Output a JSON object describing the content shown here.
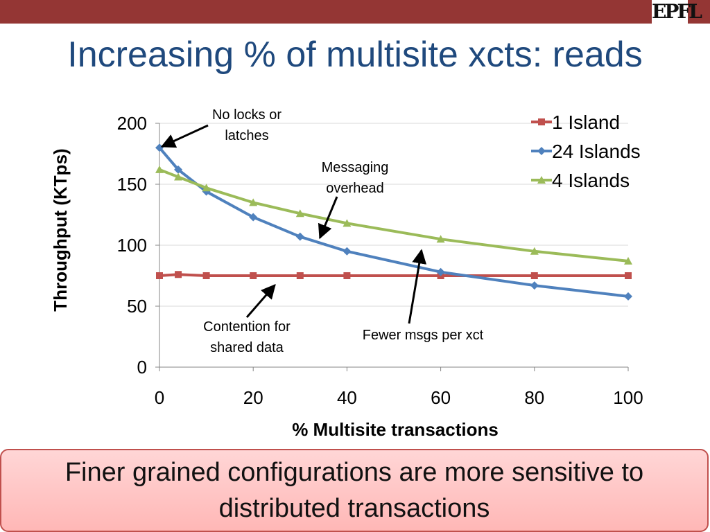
{
  "slide": {
    "title": "Increasing % of multisite xcts: reads",
    "logo_text": "EPFL",
    "callout": "Finer grained configurations are more sensitive to distributed transactions"
  },
  "colors": {
    "bar": "#943634",
    "title": "#1f497d",
    "grid": "#d9d9d9"
  },
  "chart_data": {
    "type": "line",
    "xlabel": "% Multisite transactions",
    "ylabel": "Throughput (KTps)",
    "xlim": [
      0,
      100
    ],
    "ylim": [
      0,
      200
    ],
    "xticks": [
      0,
      20,
      40,
      60,
      80,
      100
    ],
    "yticks": [
      0,
      50,
      100,
      150,
      200
    ],
    "grid": "horizontal",
    "legend_position": "top-right",
    "series": [
      {
        "name": "1 Island",
        "color": "#c0504d",
        "marker": "square",
        "x": [
          0,
          4,
          10,
          20,
          30,
          40,
          60,
          80,
          100
        ],
        "y": [
          75,
          76,
          75,
          75,
          75,
          75,
          75,
          75,
          75
        ]
      },
      {
        "name": "24 Islands",
        "color": "#4f81bd",
        "marker": "diamond",
        "x": [
          0,
          4,
          10,
          20,
          30,
          40,
          60,
          80,
          100
        ],
        "y": [
          180,
          162,
          144,
          123,
          107,
          95,
          78,
          67,
          58
        ]
      },
      {
        "name": "4 Islands",
        "color": "#9bbb59",
        "marker": "triangle",
        "x": [
          0,
          4,
          10,
          20,
          30,
          40,
          60,
          80,
          100
        ],
        "y": [
          162,
          156,
          147,
          135,
          126,
          118,
          105,
          95,
          87
        ]
      }
    ],
    "annotations": [
      {
        "lines": [
          "No locks or",
          "latches"
        ],
        "point": [
          0,
          180
        ]
      },
      {
        "lines": [
          "Messaging",
          "overhead"
        ],
        "point": [
          34,
          104
        ]
      },
      {
        "lines": [
          "Contention for",
          "shared data"
        ],
        "point": [
          25,
          69
        ]
      },
      {
        "lines": [
          "Fewer msgs per xct"
        ],
        "point": [
          56,
          98
        ]
      }
    ]
  }
}
